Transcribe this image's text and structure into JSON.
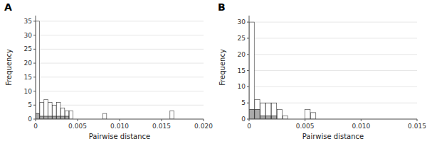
{
  "chart_data": [
    {
      "type": "histogram",
      "title": "A",
      "x_label": "Pairwise distance",
      "y_label": "Frequency",
      "xlim": [
        0,
        0.02
      ],
      "ylim": [
        0,
        37
      ],
      "xticks": [
        0,
        0.005,
        {
          "value": 0.01,
          "label": "0.010"
        },
        {
          "value": 0.015,
          "label": "0.015"
        },
        {
          "value": 0.02,
          "label": "0.020"
        }
      ],
      "yticks": [
        0,
        5,
        10,
        15,
        20,
        25,
        30,
        35
      ],
      "bins": [
        0,
        0.0005,
        0.001,
        0.0015,
        0.002,
        0.0025,
        0.003,
        0.0035,
        0.004,
        0.0045,
        0.005,
        0.0055,
        0.006,
        0.0065,
        0.007,
        0.0075,
        0.008,
        0.0085,
        0.009,
        0.0095,
        0.01,
        0.0105,
        0.011,
        0.0115,
        0.012,
        0.0125,
        0.013,
        0.0135,
        0.014,
        0.0145,
        0.015,
        0.0155,
        0.016,
        0.0165,
        0.017,
        0.0175,
        0.018,
        0.0185,
        0.019,
        0.0195,
        0.02,
        0.0205
      ],
      "series": [
        {
          "color": "white",
          "values": [
            35,
            6,
            7,
            6,
            5,
            6,
            4,
            3,
            3,
            0,
            0,
            0,
            0,
            0,
            0,
            0,
            2,
            0,
            0,
            0,
            0,
            0,
            0,
            0,
            0,
            0,
            0,
            0,
            0,
            0,
            0,
            0,
            3,
            0,
            0,
            0,
            0,
            0,
            0,
            0,
            0
          ]
        },
        {
          "color": "black",
          "values": [
            2,
            1,
            1,
            1,
            1,
            1,
            1,
            1,
            0,
            0,
            0,
            0,
            0,
            0,
            0,
            0,
            0,
            0,
            0,
            0,
            0,
            0,
            0,
            0,
            0,
            0,
            0,
            0,
            0,
            0,
            0,
            0,
            0,
            0,
            0,
            0,
            0,
            0,
            0,
            0,
            0
          ]
        },
        {
          "color": "#aaaaaa",
          "values": [
            2,
            1,
            1,
            1,
            1,
            1,
            1,
            1,
            0,
            0,
            0,
            0,
            0,
            0,
            0,
            0,
            0,
            0,
            0,
            0,
            0,
            0,
            0,
            0,
            0,
            0,
            0,
            0,
            0,
            0,
            0,
            0,
            0,
            0,
            0,
            0,
            0,
            0,
            0,
            0,
            0
          ]
        }
      ]
    },
    {
      "type": "histogram",
      "title": "B",
      "x_label": "Pairwise distance",
      "y_label": "Frequency",
      "xlim": [
        0,
        0.015
      ],
      "ylim": [
        0,
        32
      ],
      "xticks": [
        0,
        0.005,
        {
          "value": 0.01,
          "label": "0.010"
        },
        {
          "value": 0.015,
          "label": "0.015"
        }
      ],
      "yticks": [
        0,
        5,
        10,
        15,
        20,
        25,
        30
      ],
      "bins": [
        0,
        0.0005,
        0.001,
        0.0015,
        0.002,
        0.0025,
        0.003,
        0.0035,
        0.004,
        0.0045,
        0.005,
        0.0055,
        0.006,
        0.0065,
        0.007,
        0.0075,
        0.008,
        0.0085,
        0.009,
        0.0095,
        0.01,
        0.0105,
        0.011,
        0.0115,
        0.012,
        0.0125,
        0.013,
        0.0135,
        0.014,
        0.0145,
        0.015
      ],
      "series": [
        {
          "color": "white",
          "values": [
            30,
            6,
            5,
            5,
            5,
            3,
            1,
            0,
            0,
            0,
            3,
            2,
            0,
            0,
            0,
            0,
            0,
            0,
            0,
            0,
            0,
            0,
            0,
            0,
            0,
            0,
            0,
            0,
            0,
            0
          ]
        },
        {
          "color": "black",
          "values": [
            3,
            3,
            1,
            1,
            1,
            0,
            0,
            0,
            0,
            0,
            0,
            0,
            0,
            0,
            0,
            0,
            0,
            0,
            0,
            0,
            0,
            0,
            0,
            0,
            0,
            0,
            0,
            0,
            0,
            0
          ]
        },
        {
          "color": "#aaaaaa",
          "values": [
            3,
            3,
            1,
            1,
            1,
            0,
            0,
            0,
            0,
            0,
            0,
            0,
            0,
            0,
            0,
            0,
            0,
            0,
            0,
            0,
            0,
            0,
            0,
            0,
            0,
            0,
            0,
            0,
            0,
            0
          ]
        }
      ]
    }
  ]
}
